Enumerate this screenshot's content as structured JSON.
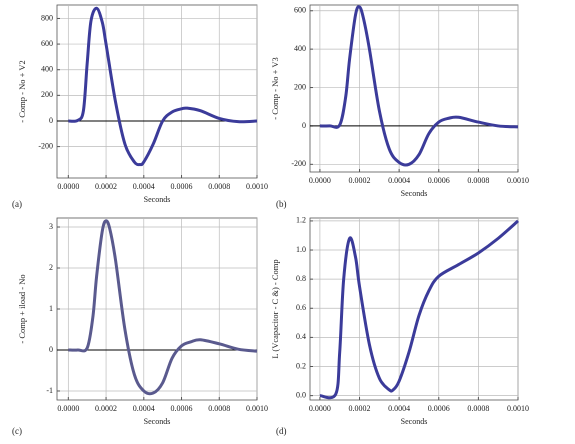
{
  "chart_data": [
    {
      "type": "line",
      "panel_label": "(a)",
      "x_label": "Seconds",
      "y_label": "- Comp - No + V2",
      "xlim": [
        -6e-05,
        0.001
      ],
      "ylim": [
        -445,
        905
      ],
      "grid": true,
      "zero_line": true,
      "xticks": [
        {
          "value": 0,
          "label": "0.0000"
        },
        {
          "value": 0.0002,
          "label": "0.0002"
        },
        {
          "value": 0.0004,
          "label": "0.0004"
        },
        {
          "value": 0.0006,
          "label": "0.0006"
        },
        {
          "value": 0.0008,
          "label": "0.0008"
        },
        {
          "value": 0.001,
          "label": "0.0010"
        }
      ],
      "yticks": [
        -200,
        0,
        200,
        400,
        600,
        800
      ],
      "x": [
        0,
        5e-05,
        8e-05,
        0.0001,
        0.00012,
        0.00015,
        0.00018,
        0.0002,
        0.00025,
        0.0003,
        0.00035,
        0.00038,
        0.0004,
        0.00045,
        0.0005,
        0.00055,
        0.0006,
        0.00063,
        0.0007,
        0.0008,
        0.0009,
        0.001
      ],
      "series": [
        {
          "color": "#3b3b9a",
          "values": [
            0,
            5,
            80,
            450,
            780,
            880,
            770,
            600,
            150,
            -180,
            -320,
            -340,
            -320,
            -180,
            0,
            70,
            95,
            100,
            80,
            20,
            -5,
            0
          ]
        }
      ]
    },
    {
      "type": "line",
      "panel_label": "(b)",
      "x_label": "Seconds",
      "y_label": "- Comp - No + V3",
      "xlim": [
        -5e-05,
        0.001
      ],
      "ylim": [
        -240,
        630
      ],
      "grid": true,
      "zero_line": true,
      "xticks": [
        {
          "value": 0,
          "label": "0.0000"
        },
        {
          "value": 0.0002,
          "label": "0.0002"
        },
        {
          "value": 0.0004,
          "label": "0.0004"
        },
        {
          "value": 0.0006,
          "label": "0.0006"
        },
        {
          "value": 0.0008,
          "label": "0.0008"
        },
        {
          "value": 0.001,
          "label": "0.0010"
        }
      ],
      "yticks": [
        -200,
        0,
        200,
        400,
        600
      ],
      "x": [
        0,
        5e-05,
        0.0001,
        0.00013,
        0.00015,
        0.00018,
        0.0002,
        0.00022,
        0.00025,
        0.0003,
        0.00035,
        0.0004,
        0.00045,
        0.0005,
        0.00055,
        0.0006,
        0.00065,
        0.0007,
        0.0008,
        0.0009,
        0.001
      ],
      "series": [
        {
          "color": "#3b3b9a",
          "values": [
            0,
            0,
            5,
            150,
            350,
            580,
            620,
            560,
            400,
            80,
            -120,
            -190,
            -200,
            -150,
            -40,
            20,
            40,
            45,
            20,
            0,
            -5
          ]
        }
      ]
    },
    {
      "type": "line",
      "panel_label": "(c)",
      "x_label": "Seconds",
      "y_label": "- Comp + iload - No",
      "xlim": [
        -6e-05,
        0.001
      ],
      "ylim": [
        -1.22,
        3.22
      ],
      "grid": true,
      "zero_line": true,
      "xticks": [
        {
          "value": 0,
          "label": "0.0000"
        },
        {
          "value": 0.0002,
          "label": "0.0002"
        },
        {
          "value": 0.0004,
          "label": "0.0004"
        },
        {
          "value": 0.0006,
          "label": "0.0006"
        },
        {
          "value": 0.0008,
          "label": "0.0008"
        },
        {
          "value": 0.001,
          "label": "0.0010"
        }
      ],
      "yticks": [
        -1,
        0,
        1,
        2,
        3
      ],
      "x": [
        0,
        5e-05,
        0.0001,
        0.00013,
        0.00015,
        0.00018,
        0.0002,
        0.00022,
        0.00025,
        0.0003,
        0.00035,
        0.0004,
        0.00045,
        0.0005,
        0.00055,
        0.0006,
        0.00065,
        0.0007,
        0.0008,
        0.0009,
        0.001
      ],
      "series": [
        {
          "color": "#5a5a8e",
          "values": [
            0,
            0,
            0.05,
            0.8,
            1.8,
            2.9,
            3.15,
            2.95,
            2.2,
            0.5,
            -0.6,
            -1.0,
            -1.05,
            -0.8,
            -0.2,
            0.1,
            0.2,
            0.25,
            0.15,
            0.02,
            -0.03
          ]
        }
      ]
    },
    {
      "type": "line",
      "panel_label": "(d)",
      "x_label": "Seconds",
      "y_label": "L (Vcapacitor - C &) - Comp",
      "xlim": [
        -5e-05,
        0.001
      ],
      "ylim": [
        -0.03,
        1.22
      ],
      "grid": true,
      "zero_line": false,
      "xticks": [
        {
          "value": 0,
          "label": "0.0000"
        },
        {
          "value": 0.0002,
          "label": "0.0002"
        },
        {
          "value": 0.0004,
          "label": "0.0004"
        },
        {
          "value": 0.0006,
          "label": "0.0006"
        },
        {
          "value": 0.0008,
          "label": "0.0008"
        },
        {
          "value": 0.001,
          "label": "0.0010"
        }
      ],
      "yticks": [
        {
          "value": 0,
          "label": "0.0"
        },
        0.2,
        0.4,
        0.6,
        0.8,
        {
          "value": 1,
          "label": "1.0"
        },
        1.2
      ],
      "x": [
        0,
        8e-05,
        0.0001,
        0.00012,
        0.00015,
        0.00018,
        0.0002,
        0.00025,
        0.0003,
        0.00035,
        0.00037,
        0.0004,
        0.00045,
        0.0005,
        0.00055,
        0.0006,
        0.0007,
        0.0008,
        0.0009,
        0.001
      ],
      "series": [
        {
          "color": "#3b3b9a",
          "values": [
            0,
            0.01,
            0.3,
            0.8,
            1.08,
            0.95,
            0.75,
            0.35,
            0.12,
            0.04,
            0.04,
            0.1,
            0.3,
            0.55,
            0.72,
            0.82,
            0.9,
            0.98,
            1.08,
            1.2
          ]
        }
      ]
    }
  ]
}
